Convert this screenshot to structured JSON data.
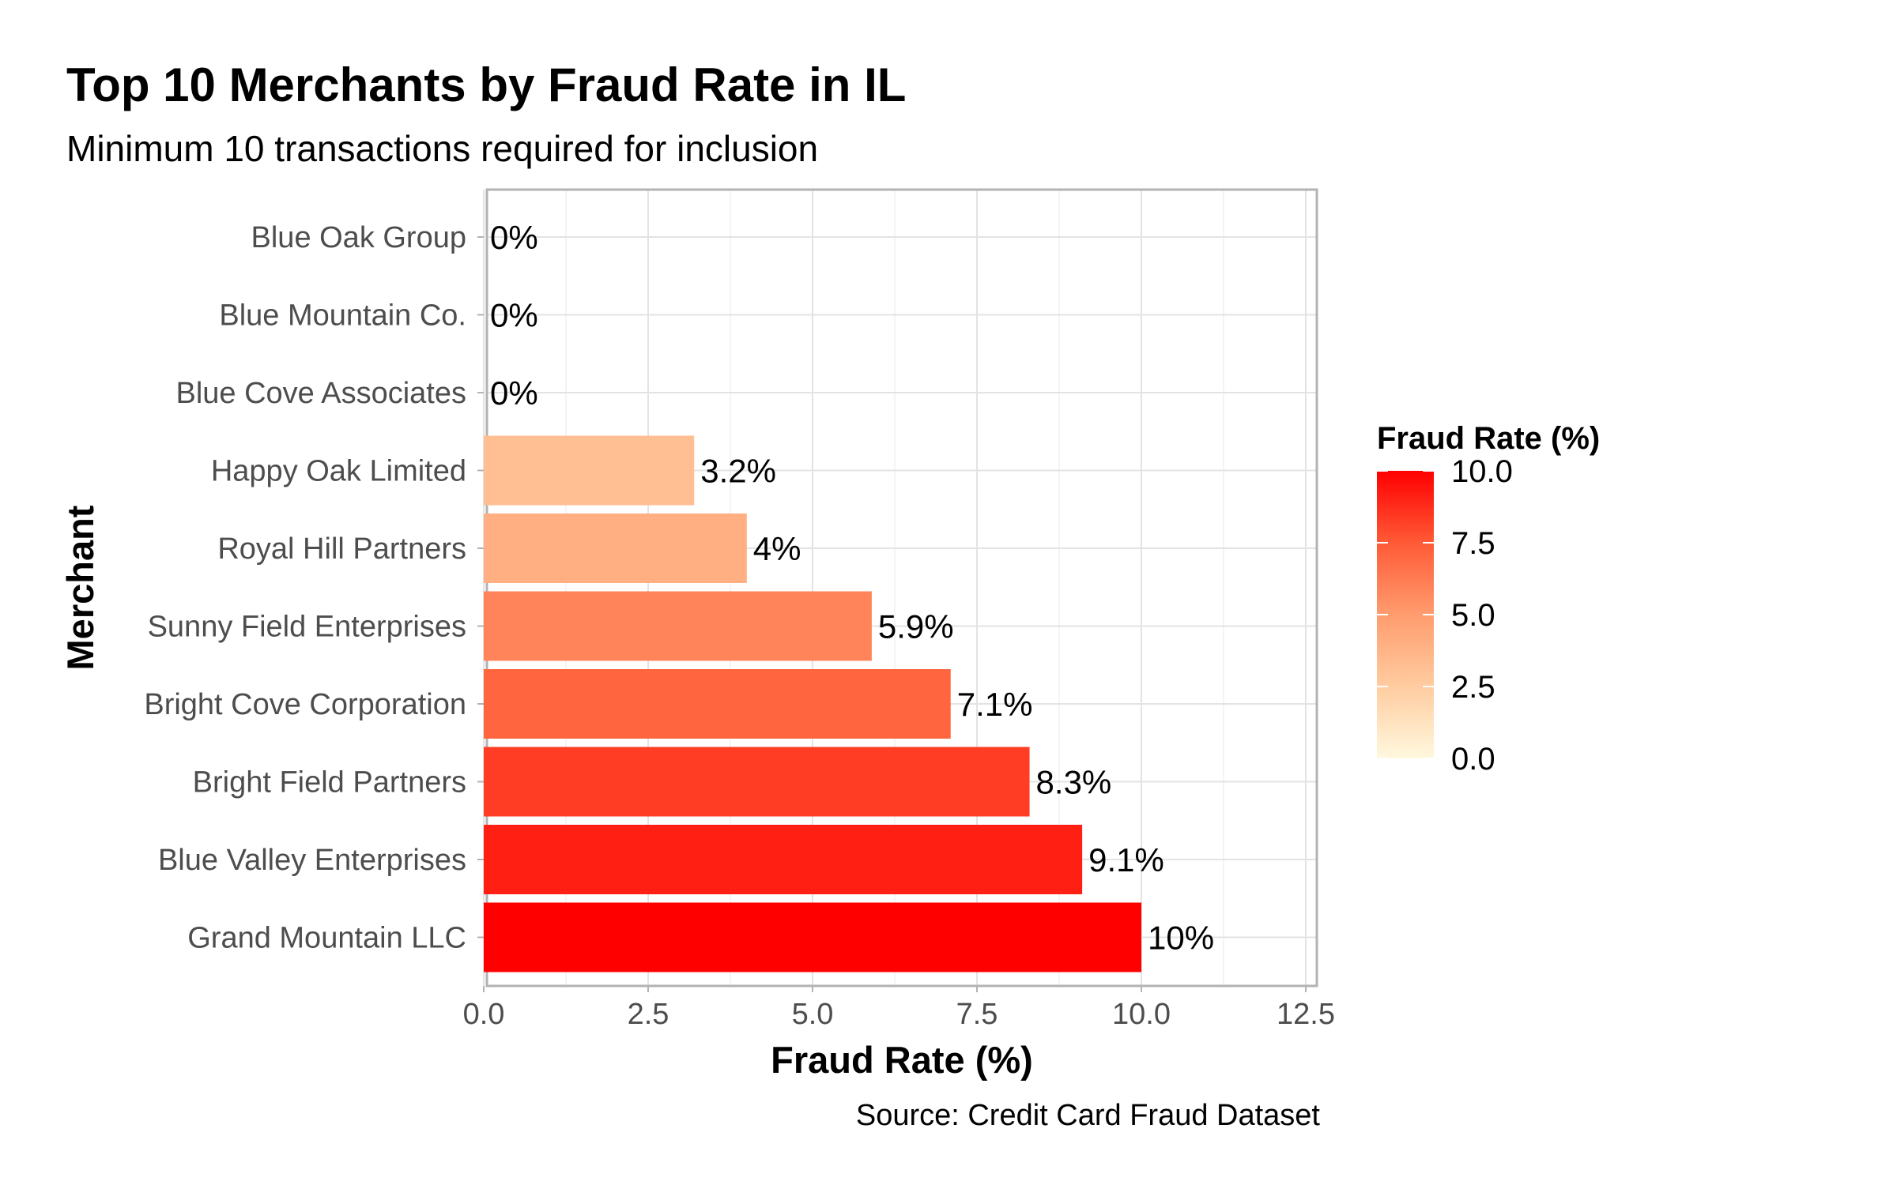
{
  "chart_data": {
    "type": "bar",
    "orientation": "horizontal",
    "title": "Top 10 Merchants by Fraud Rate in IL",
    "subtitle": "Minimum 10 transactions required for inclusion",
    "xlabel": "Fraud Rate (%)",
    "ylabel": "Merchant",
    "caption": "Source: Credit Card Fraud Dataset",
    "xlim": [
      0,
      12.5
    ],
    "x_ticks": [
      "0.0",
      "2.5",
      "5.0",
      "7.5",
      "10.0",
      "12.5"
    ],
    "x_tick_values": [
      0,
      2.5,
      5,
      7.5,
      10,
      12.5
    ],
    "grid": true,
    "categories": [
      "Blue Oak Group",
      "Blue Mountain Co.",
      "Blue Cove Associates",
      "Happy Oak Limited",
      "Royal Hill Partners",
      "Sunny Field Enterprises",
      "Bright Cove Corporation",
      "Bright Field Partners",
      "Blue Valley Enterprises",
      "Grand Mountain LLC"
    ],
    "values": [
      0,
      0,
      0,
      3.2,
      4,
      5.9,
      7.1,
      8.3,
      9.1,
      10
    ],
    "data_labels": [
      "0%",
      "0%",
      "0%",
      "3.2%",
      "4%",
      "5.9%",
      "7.1%",
      "8.3%",
      "9.1%",
      "10%"
    ],
    "legend": {
      "title": "Fraud Rate (%)",
      "placement": "right",
      "type": "colorbar",
      "range": [
        0,
        10
      ],
      "ticks": [
        "10.0",
        "7.5",
        "5.0",
        "2.5",
        "0.0"
      ],
      "tick_values": [
        10,
        7.5,
        5,
        2.5,
        0
      ],
      "color_low": "#fff5d6",
      "color_mid": "#ff9c6e",
      "color_high": "#ff0000"
    }
  }
}
